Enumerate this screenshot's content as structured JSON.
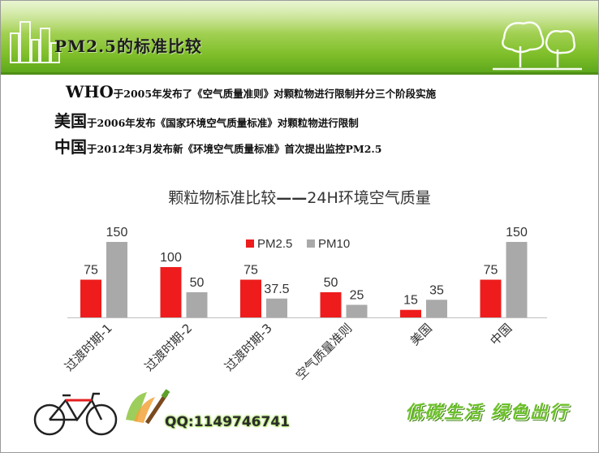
{
  "slide": {
    "title": "PM2.5的标准比较",
    "lines": [
      {
        "lead": "WHO",
        "rest": "于2005年发布了《空气质量准则》对颗粒物进行限制并分三个阶段实施"
      },
      {
        "lead": "美国",
        "rest": "于2006年发布《国家环境空气质量标准》对颗粒物进行限制"
      },
      {
        "lead": "中国",
        "rest": "于2012年3月发布新《环境空气质量标准》首次提出监控PM2.5"
      }
    ],
    "qq": "QQ:1149746741",
    "slogan": "低碳生活 绿色出行"
  },
  "colors": {
    "pm25": "#ee1c1c",
    "pm10": "#a9a9a9",
    "axis": "#bfbfbf",
    "header": "#7fbf2a"
  },
  "icons": [
    "city-skyline-icon",
    "trees-icon",
    "bicycle-icon",
    "paint-brush-icon"
  ],
  "chart_data": {
    "type": "bar",
    "title_prefix": "颗粒物标准比较",
    "title_dash": "——",
    "title_suffix": "24H环境空气质量",
    "categories": [
      "过渡时期-1",
      "过渡时期-2",
      "过渡时期-3",
      "空气质量准则",
      "美国",
      "中国"
    ],
    "series": [
      {
        "name": "PM2.5",
        "values": [
          75,
          100,
          75,
          50,
          15,
          75
        ]
      },
      {
        "name": "PM10",
        "values": [
          150,
          50,
          37.5,
          25,
          35,
          150
        ]
      }
    ],
    "value_labels": [
      [
        "75",
        "100",
        "75",
        "50",
        "15",
        "75"
      ],
      [
        "150",
        "50",
        "37.5",
        "25",
        "35",
        "150"
      ]
    ],
    "ylim": [
      0,
      150
    ],
    "legend": "top-center",
    "grid": false
  }
}
